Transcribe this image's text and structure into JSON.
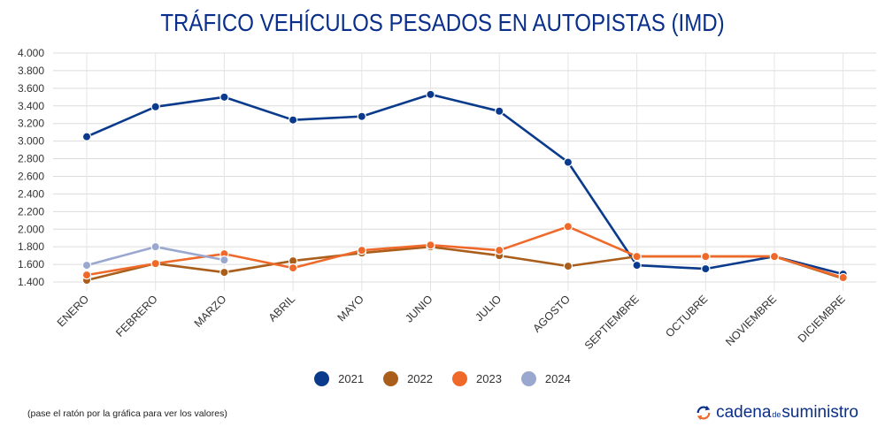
{
  "title": "TRÁFICO VEHÍCULOS PESADOS EN AUTOPISTAS (IMD)",
  "footnote": "(pase el ratón por la gráfica para ver los valores)",
  "brand": {
    "part1": "cadena",
    "part2": "de",
    "part3": "suministro"
  },
  "chart_data": {
    "type": "line",
    "title": "TRÁFICO VEHÍCULOS PESADOS EN AUTOPISTAS (IMD)",
    "xlabel": "",
    "ylabel": "",
    "categories": [
      "ENERO",
      "FEBRERO",
      "MARZO",
      "ABRIL",
      "MAYO",
      "JUNIO",
      "JULIO",
      "AGOSTO",
      "SEPTIEMBRE",
      "OCTUBRE",
      "NOVIEMBRE",
      "DICIEMBRE"
    ],
    "ylim": [
      1300,
      4000
    ],
    "yticks": [
      1400,
      1600,
      1800,
      2000,
      2200,
      2400,
      2600,
      2800,
      3000,
      3200,
      3400,
      3600,
      3800,
      4000
    ],
    "ytick_labels": [
      "1.400",
      "1.600",
      "1.800",
      "2.000",
      "2.200",
      "2.400",
      "2.600",
      "2.800",
      "3.000",
      "3.200",
      "3.400",
      "3.600",
      "3.800",
      "4.000"
    ],
    "grid": true,
    "legend_position": "bottom",
    "series": [
      {
        "name": "2021",
        "color": "#0a3a8c",
        "values": [
          3050,
          3390,
          3500,
          3240,
          3280,
          3530,
          3340,
          2760,
          1590,
          1550,
          1690,
          1490
        ]
      },
      {
        "name": "2022",
        "color": "#a95e1c",
        "values": [
          1420,
          1610,
          1510,
          1640,
          1730,
          1800,
          1700,
          1580,
          1690,
          1690,
          1690,
          1440
        ]
      },
      {
        "name": "2023",
        "color": "#ef6a2a",
        "values": [
          1480,
          1610,
          1720,
          1560,
          1760,
          1820,
          1760,
          2030,
          1690,
          1690,
          1690,
          1450
        ]
      },
      {
        "name": "2024",
        "color": "#9aa8d0",
        "values": [
          1590,
          1800,
          1650,
          null,
          null,
          null,
          null,
          null,
          null,
          null,
          null,
          null
        ]
      }
    ]
  }
}
